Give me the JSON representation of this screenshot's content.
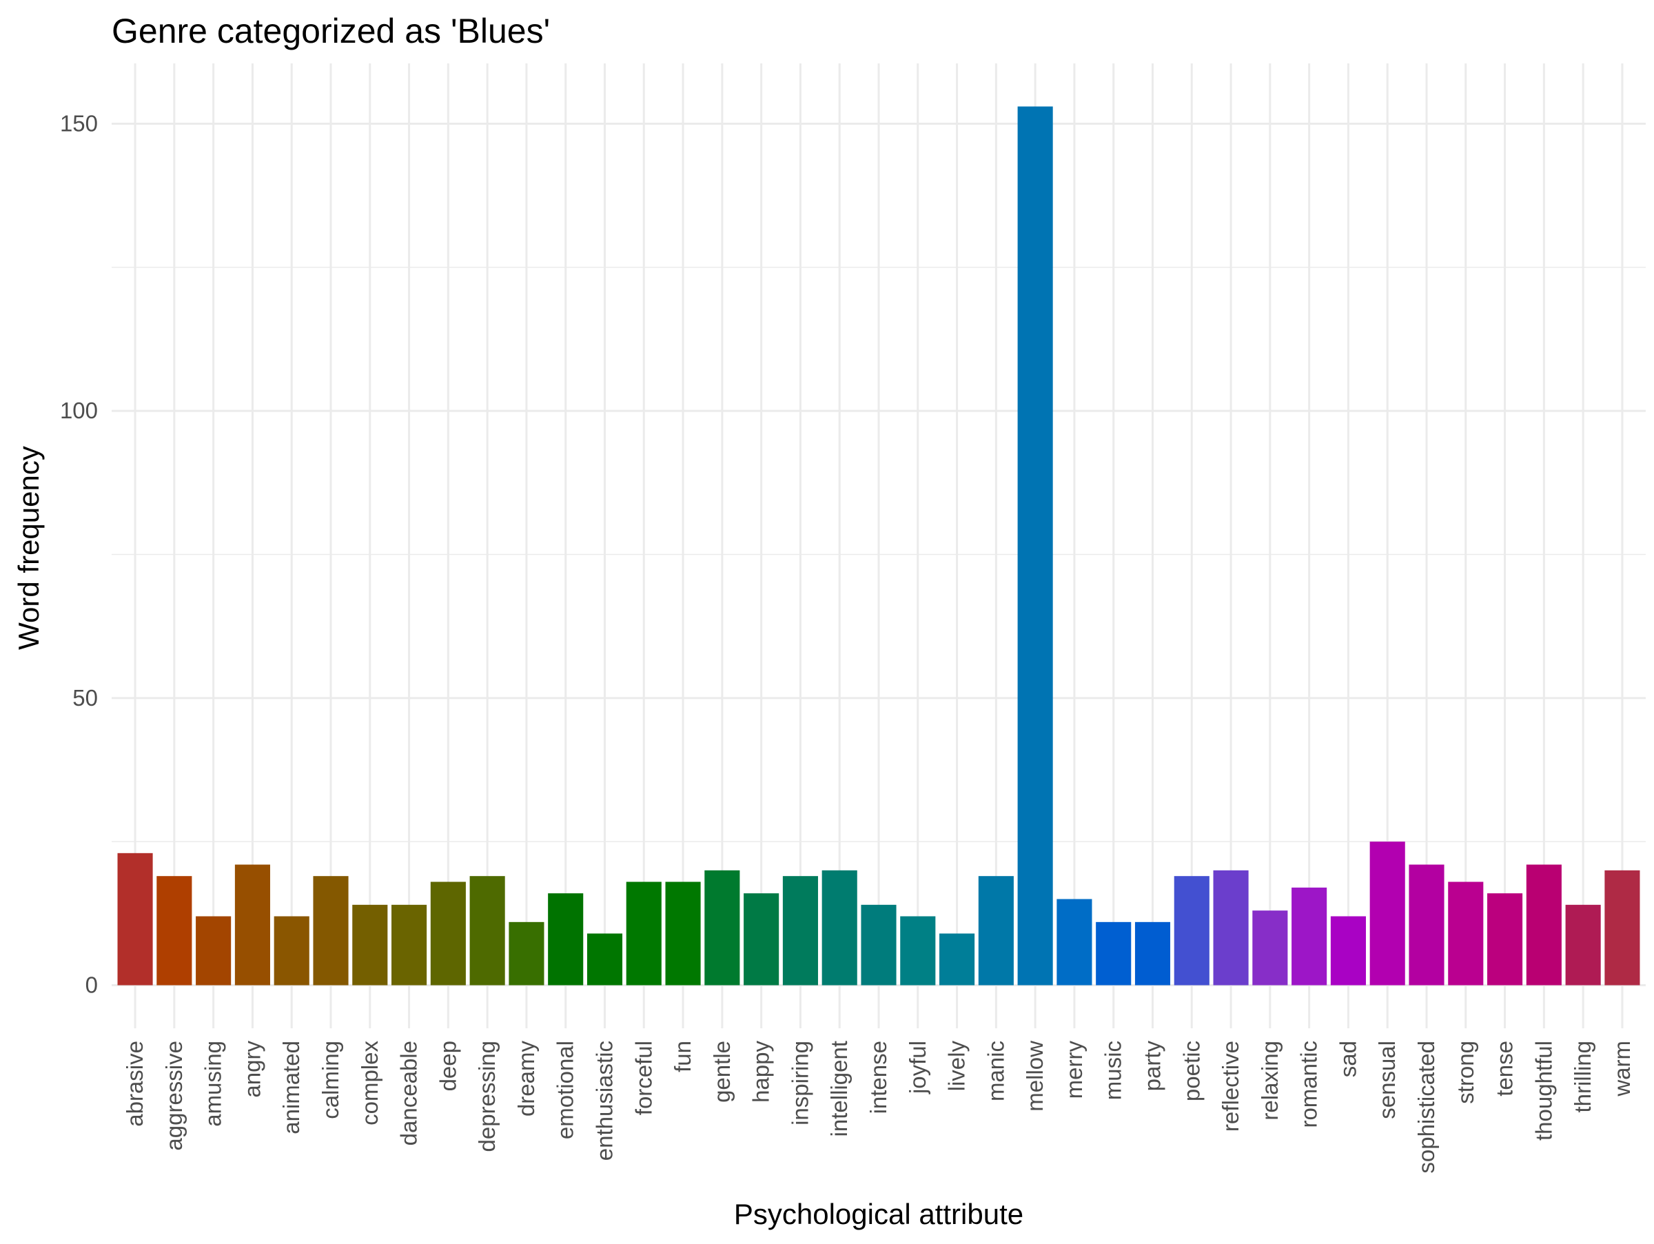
{
  "chart_data": {
    "type": "bar",
    "title": "Genre categorized as 'Blues'",
    "xlabel": "Psychological attribute",
    "ylabel": "Word frequency",
    "ylim": [
      -7.5,
      160.5
    ],
    "yticks": [
      0,
      50,
      100,
      150
    ],
    "grid": true,
    "legend": "none",
    "categories": [
      "abrasive",
      "aggressive",
      "amusing",
      "angry",
      "animated",
      "calming",
      "complex",
      "danceable",
      "deep",
      "depressing",
      "dreamy",
      "emotional",
      "enthusiastic",
      "forceful",
      "fun",
      "gentle",
      "happy",
      "inspiring",
      "intelligent",
      "intense",
      "joyful",
      "lively",
      "manic",
      "mellow",
      "merry",
      "music",
      "party",
      "poetic",
      "reflective",
      "relaxing",
      "romantic",
      "sad",
      "sensual",
      "sophisticated",
      "strong",
      "tense",
      "thoughtful",
      "thrilling",
      "warm"
    ],
    "values": [
      23,
      19,
      12,
      21,
      12,
      19,
      14,
      14,
      18,
      19,
      11,
      16,
      9,
      18,
      18,
      20,
      16,
      19,
      20,
      14,
      12,
      9,
      19,
      153,
      15,
      11,
      11,
      19,
      20,
      13,
      17,
      12,
      25,
      21,
      18,
      16,
      21,
      14,
      20
    ],
    "colors": [
      "#B22F2A",
      "#AF3F00",
      "#A34500",
      "#974F00",
      "#8A5600",
      "#845800",
      "#745F00",
      "#6A6400",
      "#5E6600",
      "#4E6A00",
      "#386F00",
      "#007300",
      "#007600",
      "#007800",
      "#007800",
      "#007A2E",
      "#007A45",
      "#007B5C",
      "#007C6F",
      "#007C7C",
      "#008085",
      "#007E98",
      "#0078A8",
      "#0074B3",
      "#006DC6",
      "#005FD1",
      "#005DD1",
      "#4350D1",
      "#6B3ECC",
      "#872EC8",
      "#9D16C7",
      "#A902C4",
      "#B200B0",
      "#B300A1",
      "#BA0090",
      "#BB007E",
      "#B90072",
      "#AF1B54",
      "#AF2A45"
    ]
  }
}
